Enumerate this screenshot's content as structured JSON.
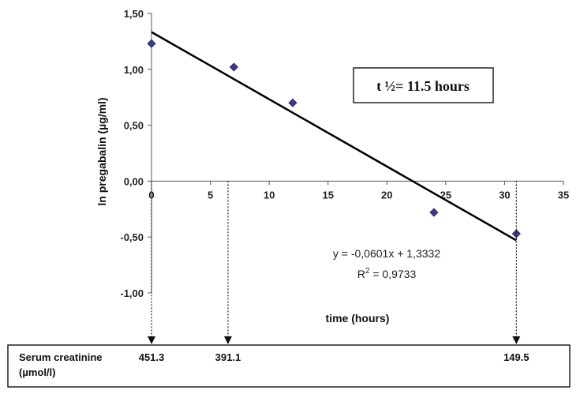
{
  "chart_data": {
    "type": "scatter",
    "xlabel": "time (hours)",
    "ylabel": "ln pregabalin (µg/ml)",
    "xlim": [
      0,
      35
    ],
    "ylim": [
      -1.0,
      1.5
    ],
    "x_ticks": [
      "0",
      "5",
      "10",
      "15",
      "20",
      "25",
      "30",
      "35"
    ],
    "y_ticks": [
      "1,50",
      "1,00",
      "0,50",
      "0,00",
      "-0,50",
      "-1,00"
    ],
    "points": [
      {
        "x": 0,
        "y": 1.23
      },
      {
        "x": 7,
        "y": 1.02
      },
      {
        "x": 12,
        "y": 0.7
      },
      {
        "x": 24,
        "y": -0.28
      },
      {
        "x": 31,
        "y": -0.47
      }
    ],
    "trendline": {
      "slope": -0.0601,
      "intercept": 1.3332,
      "x_range": [
        0,
        31
      ]
    },
    "equation": "y = -0,0601x + 1,3332",
    "r_squared_label": "R",
    "r_squared_sup": "2",
    "r_squared_value": " = 0,9733",
    "halflife_label": "t ½= 11.5 hours",
    "creatinine": {
      "label_line1": "Serum creatinine",
      "label_line2": "(µmol/l)",
      "values": [
        {
          "x": 0,
          "label": "451.3"
        },
        {
          "x": 6.5,
          "label": "391.1"
        },
        {
          "x": 31,
          "label": "149.5"
        }
      ]
    },
    "colors": {
      "points": "#3b3b8f",
      "trendline": "#000000"
    }
  }
}
